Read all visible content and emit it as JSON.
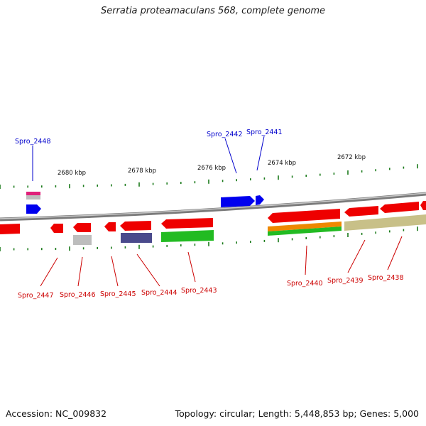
{
  "title": "Serratia proteamaculans 568, complete genome",
  "footer": {
    "accession": "Accession: NC_009832",
    "summary": "Topology: circular; Length: 5,448,853 bp; Genes: 5,000"
  },
  "colors": {
    "forward_label": "#0000cc",
    "reverse_label": "#cc0000",
    "backbone": "#7a7a7a",
    "tick": "#1a7a1a",
    "red": "#ee0000",
    "blue": "#0000ee",
    "green": "#22bb22",
    "magenta": "#e0207a",
    "gray": "#b8b8b8",
    "navy": "#4a4a8c",
    "orange": "#ee8800",
    "khaki": "#c8c088"
  },
  "scale_labels": [
    "2680 kbp",
    "2678 kbp",
    "2676 kbp",
    "2674 kbp",
    "2672 kbp"
  ],
  "gene_labels": [
    {
      "name": "Spro_2448",
      "strand": "forward"
    },
    {
      "name": "Spro_2442",
      "strand": "forward"
    },
    {
      "name": "Spro_2441",
      "strand": "forward"
    },
    {
      "name": "Spro_2447",
      "strand": "reverse"
    },
    {
      "name": "Spro_2446",
      "strand": "reverse"
    },
    {
      "name": "Spro_2445",
      "strand": "reverse"
    },
    {
      "name": "Spro_2444",
      "strand": "reverse"
    },
    {
      "name": "Spro_2443",
      "strand": "reverse"
    },
    {
      "name": "Spro_2440",
      "strand": "reverse"
    },
    {
      "name": "Spro_2439",
      "strand": "reverse"
    },
    {
      "name": "Spro_2438",
      "strand": "reverse"
    }
  ]
}
